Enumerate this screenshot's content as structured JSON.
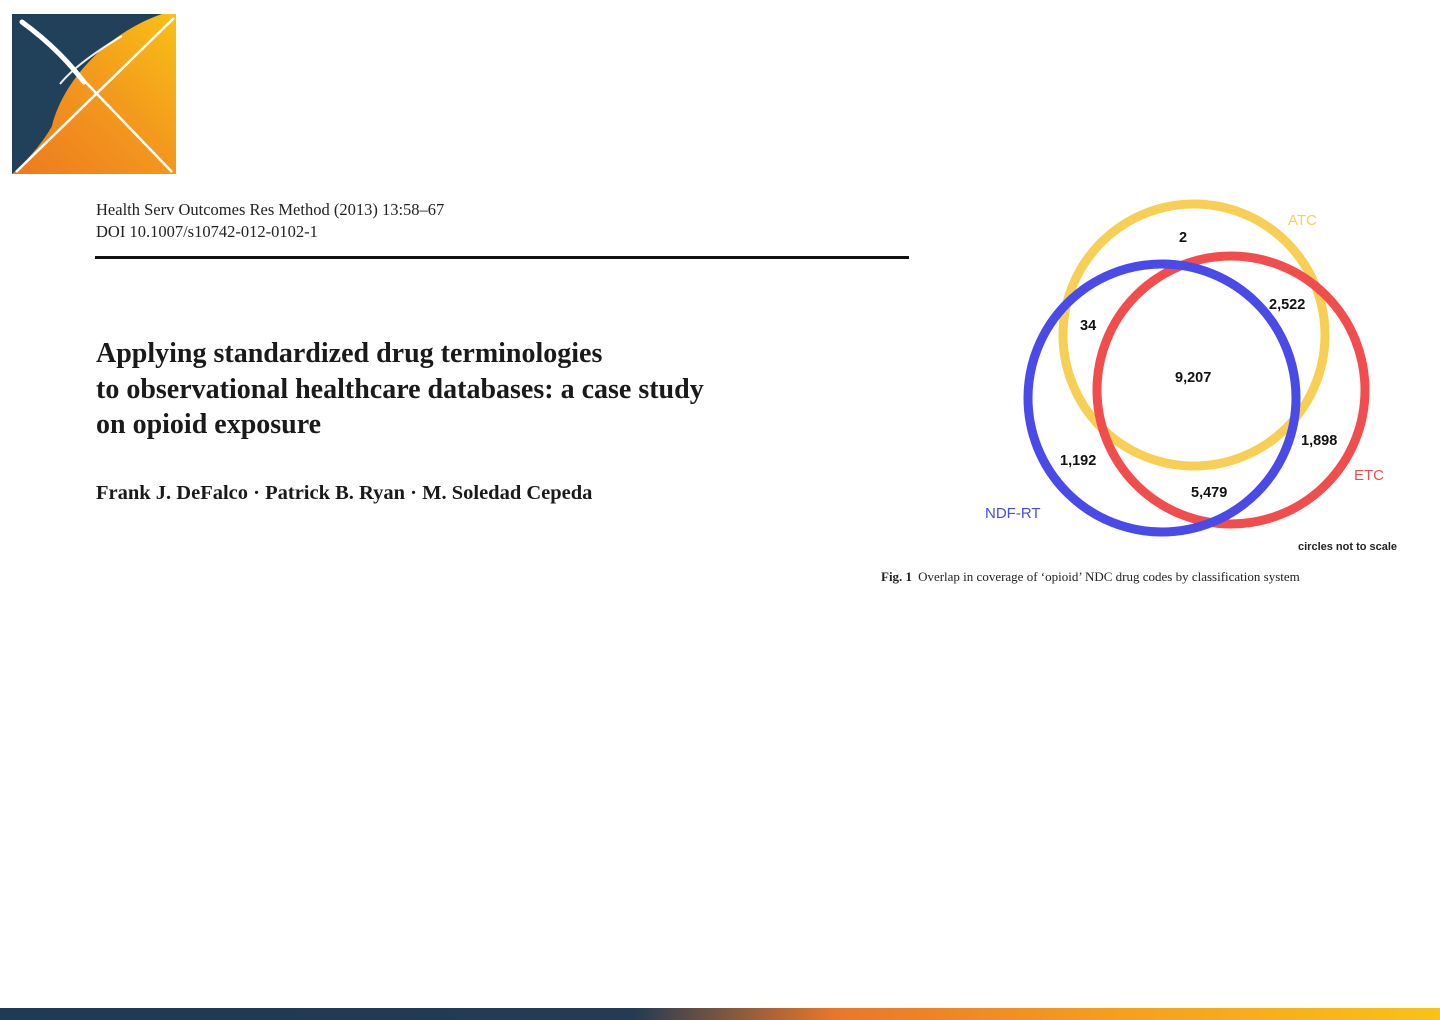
{
  "citation": {
    "journal_line": "Health Serv Outcomes Res Method (2013) 13:58–67",
    "doi_line": "DOI 10.1007/s10742-012-0102-1"
  },
  "paper": {
    "title_lines": [
      "Applying standardized drug terminologies",
      "to observational healthcare databases: a case study",
      "on opioid exposure"
    ],
    "authors": "Frank J. DeFalco · Patrick B. Ryan · M. Soledad Cepeda"
  },
  "figure": {
    "set_labels": {
      "atc": "ATC",
      "etc": "ETC",
      "ndfrt": "NDF-RT"
    },
    "regions": {
      "atc_only": "2",
      "atc_etc": "2,522",
      "atc_ndfrt": "34",
      "all_three": "9,207",
      "etc_only": "1,898",
      "ndfrt_only": "1,192",
      "etc_ndfrt": "5,479"
    },
    "scale_note": "circles not to scale",
    "caption_label": "Fig. 1",
    "caption_text": "Overlap in coverage of ‘opioid’ NDC drug codes by classification system",
    "colors": {
      "atc": "#f7cf55",
      "etc": "#f24d4d",
      "ndfrt": "#4a4ae8"
    }
  },
  "branding": {
    "logo_name": "ohdsi-logo",
    "colors": {
      "navy": "#21405a",
      "orange": "#ee8220",
      "yellow": "#f9be16"
    }
  }
}
